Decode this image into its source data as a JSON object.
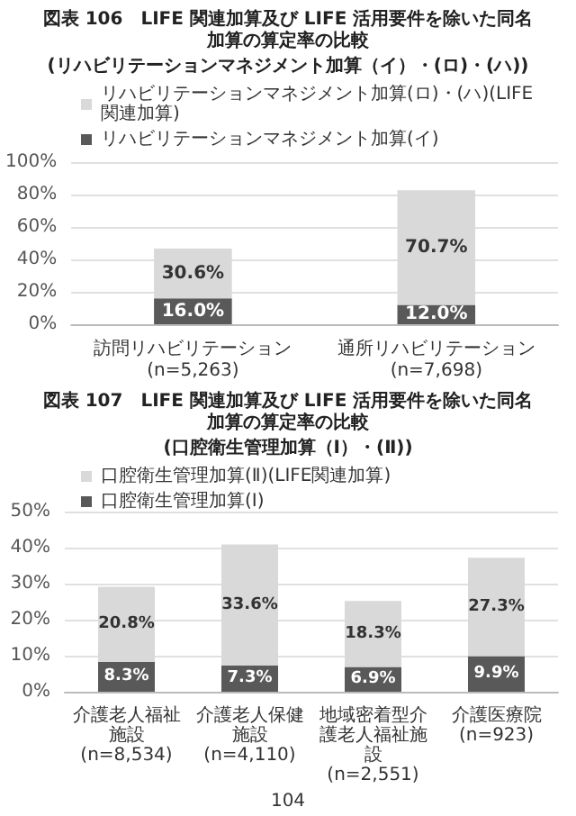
{
  "chart_data": [
    {
      "type": "bar",
      "title": "図表 106　LIFE 関連加算及び LIFE 活用要件を除いた同名加算の算定率の比較",
      "subtitle": "(リハビリテーションマネジメント加算（イ）・(ロ)・(ハ))",
      "categories": [
        "訪問リハビリテーション\n(n=5,263)",
        "通所リハビリテーション\n(n=7,698)"
      ],
      "stacked": true,
      "series": [
        {
          "name": "リハビリテーションマネジメント加算(イ)",
          "color": "#595959",
          "values": [
            16.0,
            12.0
          ],
          "value_labels": [
            "16.0%",
            "12.0%"
          ]
        },
        {
          "name": "リハビリテーションマネジメント加算(ロ)・(ハ)(LIFE関連加算)",
          "color": "#d9d9d9",
          "values": [
            30.6,
            70.7
          ],
          "value_labels": [
            "30.6%",
            "70.7%"
          ]
        }
      ],
      "ylim": [
        0,
        100
      ],
      "yticks": [
        {
          "value": 0,
          "label": "0%"
        },
        {
          "value": 20,
          "label": "20%"
        },
        {
          "value": 40,
          "label": "40%"
        },
        {
          "value": 60,
          "label": "60%"
        },
        {
          "value": 80,
          "label": "80%"
        },
        {
          "value": 100,
          "label": "100%"
        }
      ],
      "grid": "y",
      "legend": "top left"
    },
    {
      "type": "bar",
      "title": "図表 107　LIFE 関連加算及び LIFE 活用要件を除いた同名加算の算定率の比較",
      "subtitle": "(口腔衛生管理加算（Ⅰ）・(Ⅱ))",
      "categories": [
        "介護老人福祉施設\n(n=8,534)",
        "介護老人保健施設\n(n=4,110)",
        "地域密着型介護老人福祉施設\n(n=2,551)",
        "介護医療院\n(n=923)"
      ],
      "stacked": true,
      "series": [
        {
          "name": "口腔衛生管理加算(Ⅰ)",
          "color": "#595959",
          "values": [
            8.3,
            7.3,
            6.9,
            9.9
          ],
          "value_labels": [
            "8.3%",
            "7.3%",
            "6.9%",
            "9.9%"
          ]
        },
        {
          "name": "口腔衛生管理加算(Ⅱ)(LIFE関連加算)",
          "color": "#d9d9d9",
          "values": [
            20.8,
            33.6,
            18.3,
            27.3
          ],
          "value_labels": [
            "20.8%",
            "33.6%",
            "18.3%",
            "27.3%"
          ]
        }
      ],
      "ylim": [
        0,
        50
      ],
      "yticks": [
        {
          "value": 0,
          "label": "0%"
        },
        {
          "value": 10,
          "label": "10%"
        },
        {
          "value": 20,
          "label": "20%"
        },
        {
          "value": 30,
          "label": "30%"
        },
        {
          "value": 40,
          "label": "40%"
        },
        {
          "value": 50,
          "label": "50%"
        }
      ],
      "grid": "y",
      "legend": "top left",
      "annotations": [
        "104"
      ]
    }
  ]
}
